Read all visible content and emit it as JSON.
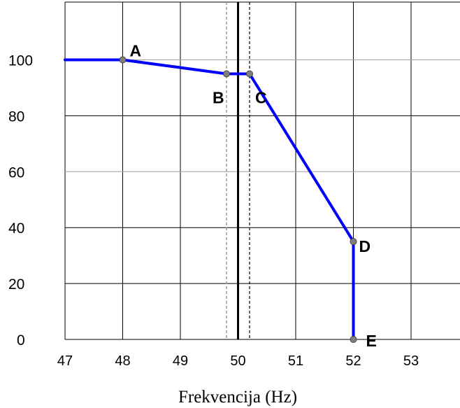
{
  "chart_data": {
    "type": "line",
    "xlabel": "Frekvencija (Hz)",
    "ylabel": "",
    "title": "",
    "xlim": [
      47,
      53.5
    ],
    "ylim": [
      0,
      120
    ],
    "x_ticks": [
      "47",
      "48",
      "49",
      "50",
      "51",
      "52",
      "53"
    ],
    "y_ticks": [
      "0",
      "20",
      "40",
      "60",
      "80",
      "100"
    ],
    "grid": true,
    "series": [
      {
        "color": "#0000ff",
        "points": [
          {
            "x": 47.0,
            "y": 100
          },
          {
            "x": 48.0,
            "y": 100,
            "label": "A"
          },
          {
            "x": 49.8,
            "y": 95,
            "label": "B"
          },
          {
            "x": 50.2,
            "y": 95,
            "label": "C"
          },
          {
            "x": 52.0,
            "y": 35,
            "label": "D"
          },
          {
            "x": 52.0,
            "y": 0,
            "label": "E"
          }
        ]
      }
    ],
    "reference_lines": [
      {
        "x": 49.8,
        "style": "dashed",
        "color": "#999999"
      },
      {
        "x": 50.0,
        "style": "solid",
        "color": "#000000"
      },
      {
        "x": 50.2,
        "style": "dashed",
        "color": "#000000"
      }
    ]
  }
}
